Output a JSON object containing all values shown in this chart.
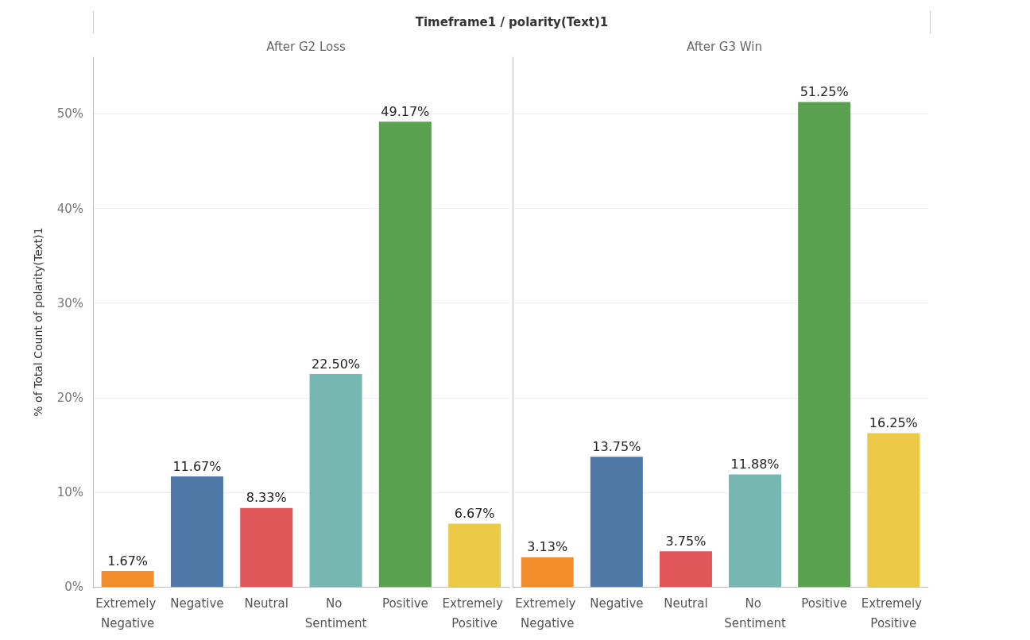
{
  "chart_data": [
    {
      "type": "bar",
      "title": "Timeframe1 / polarity(Text)1",
      "subtitle": "After G2 Loss",
      "ylabel": "% of Total Count of polarity(Text)1",
      "categories": [
        "Extremely Negative",
        "Negative",
        "Neutral",
        "No Sentiment",
        "Positive",
        "Extremely Positive"
      ],
      "values": [
        1.67,
        11.67,
        8.33,
        22.5,
        49.17,
        6.67
      ],
      "value_labels": [
        "1.67%",
        "11.67%",
        "8.33%",
        "22.50%",
        "49.17%",
        "6.67%"
      ],
      "colors": [
        "#f28e2b",
        "#4e79a7",
        "#e15759",
        "#76b7b2",
        "#59a14f",
        "#edc948"
      ],
      "ylim": [
        0,
        56
      ],
      "yticks": [
        {
          "value": 0,
          "label": "0%"
        },
        {
          "value": 10,
          "label": "10%"
        },
        {
          "value": 20,
          "label": "20%"
        },
        {
          "value": 30,
          "label": "30%"
        },
        {
          "value": 40,
          "label": "40%"
        },
        {
          "value": 50,
          "label": "50%"
        }
      ],
      "grid": "y"
    },
    {
      "type": "bar",
      "subtitle": "After G3 Win",
      "categories": [
        "Extremely Negative",
        "Negative",
        "Neutral",
        "No Sentiment",
        "Positive",
        "Extremely Positive"
      ],
      "values": [
        3.13,
        13.75,
        3.75,
        11.88,
        51.25,
        16.25
      ],
      "value_labels": [
        "3.13%",
        "13.75%",
        "3.75%",
        "11.88%",
        "51.25%",
        "16.25%"
      ],
      "colors": [
        "#f28e2b",
        "#4e79a7",
        "#e15759",
        "#76b7b2",
        "#59a14f",
        "#edc948"
      ],
      "ylim": [
        0,
        56
      ],
      "yticks": [
        {
          "value": 0,
          "label": null
        },
        {
          "value": 10,
          "label": null
        },
        {
          "value": 20,
          "label": null
        },
        {
          "value": 30,
          "label": null
        },
        {
          "value": 40,
          "label": null
        },
        {
          "value": 50,
          "label": null
        }
      ],
      "grid": "y",
      "tick_labels": "x"
    }
  ]
}
